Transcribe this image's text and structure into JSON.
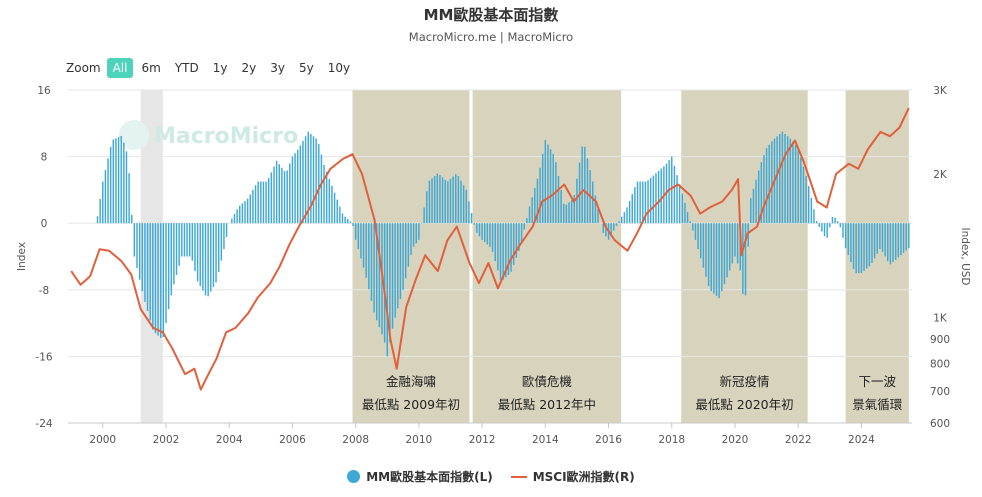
{
  "title": "MM歐股基本面指數",
  "subtitle": "MacroMicro.me | MacroMicro",
  "zoom": {
    "label": "Zoom",
    "buttons": [
      "All",
      "6m",
      "YTD",
      "1y",
      "2y",
      "3y",
      "5y",
      "10y"
    ],
    "active": "All"
  },
  "watermark": "MacroMicro",
  "legend": [
    {
      "name": "MM歐股基本面指數(L)",
      "color": "#3ea8d6",
      "icon": "circle-marker-icon"
    },
    {
      "name": "MSCI歐洲指數(R)",
      "color": "#e0603c",
      "icon": "line-marker-icon"
    }
  ],
  "colors": {
    "bars": "#3ea8d6",
    "line": "#e0603c",
    "shade": "#d7d3bd",
    "light_shade": "#e6e6e6"
  },
  "chart_data": {
    "type": "bar+line",
    "ylabel_left": "Index",
    "ylabel_right": "Index, USD",
    "y_left_ticks": [
      16,
      8,
      0,
      -8,
      -16,
      -24
    ],
    "y_left_range": [
      -24,
      16
    ],
    "y_right_ticks": [
      "3K",
      "2K",
      "1K",
      "900",
      "800",
      "700",
      "600"
    ],
    "y_right_range": [
      600,
      3000
    ],
    "y_right_scale": "log",
    "x_range": [
      1998.9,
      2025.6
    ],
    "x_ticks": [
      "2000",
      "2002",
      "2004",
      "2006",
      "2008",
      "2010",
      "2012",
      "2014",
      "2016",
      "2018",
      "2020",
      "2022",
      "2024"
    ],
    "shaded_periods": [
      {
        "start": 2001.2,
        "end": 2001.9,
        "style": "light",
        "label": []
      },
      {
        "start": 2007.9,
        "end": 2011.6,
        "style": "event",
        "label": [
          "金融海嘯",
          "最低點 2009年初"
        ]
      },
      {
        "start": 2011.7,
        "end": 2016.4,
        "style": "event",
        "label": [
          "歐債危機",
          "最低點 2012年中"
        ]
      },
      {
        "start": 2018.3,
        "end": 2022.3,
        "style": "event",
        "label": [
          "新冠疫情",
          "最低點 2020年初"
        ]
      },
      {
        "start": 2023.5,
        "end": 2025.5,
        "style": "event",
        "label": [
          "下一波",
          "景氣循環"
        ]
      }
    ],
    "bar_series": {
      "name": "MM歐股基本面指數(L)",
      "x": [
        1999.0,
        1999.5,
        1999.8,
        2000.0,
        2000.3,
        2000.6,
        2000.8,
        2001.0,
        2001.3,
        2001.6,
        2001.9,
        2002.0,
        2002.2,
        2002.5,
        2002.8,
        2003.0,
        2003.3,
        2003.6,
        2003.9,
        2004.0,
        2004.3,
        2004.6,
        2004.9,
        2005.2,
        2005.5,
        2005.8,
        2006.0,
        2006.2,
        2006.5,
        2006.8,
        2007.0,
        2007.3,
        2007.6,
        2007.9,
        2008.0,
        2008.3,
        2008.6,
        2008.9,
        2009.0,
        2009.2,
        2009.5,
        2009.8,
        2010.0,
        2010.3,
        2010.6,
        2010.9,
        2011.2,
        2011.5,
        2011.8,
        2012.0,
        2012.3,
        2012.6,
        2012.9,
        2013.2,
        2013.5,
        2013.8,
        2014.0,
        2014.3,
        2014.6,
        2014.9,
        2015.2,
        2015.5,
        2015.8,
        2016.0,
        2016.3,
        2016.6,
        2016.9,
        2017.2,
        2017.5,
        2017.8,
        2018.0,
        2018.3,
        2018.6,
        2018.9,
        2019.2,
        2019.5,
        2019.8,
        2020.0,
        2020.2,
        2020.3,
        2020.5,
        2020.8,
        2021.0,
        2021.2,
        2021.5,
        2021.8,
        2022.0,
        2022.3,
        2022.6,
        2022.9,
        2023.1,
        2023.3,
        2023.5,
        2023.8,
        2024.0,
        2024.3,
        2024.6,
        2024.9,
        2025.2,
        2025.5
      ],
      "values": [
        0,
        0,
        0,
        5,
        10,
        10.5,
        8,
        -4,
        -9,
        -13,
        -14,
        -12,
        -8,
        -4,
        -4,
        -7,
        -9,
        -7,
        -2,
        0,
        2,
        3,
        5,
        5,
        7.5,
        6,
        8,
        9,
        11,
        10,
        7,
        4,
        1,
        0,
        -2,
        -6,
        -11,
        -14,
        -16,
        -12,
        -8,
        -3,
        -2,
        5,
        6,
        5,
        6,
        4,
        -1,
        -2,
        -3,
        -7,
        -6,
        -3,
        2,
        6,
        10,
        8,
        2,
        3,
        10,
        5,
        -1,
        -2,
        0,
        2,
        5,
        5,
        6,
        7,
        8,
        4,
        0,
        -4,
        -8,
        -9,
        -6,
        -4,
        -6,
        -11,
        3,
        7,
        9,
        10,
        11,
        10,
        9,
        5,
        0,
        -2,
        1,
        0,
        -3,
        -6,
        -6,
        -5,
        -3,
        -5,
        -4,
        -3
      ]
    },
    "line_series": {
      "name": "MSCI歐洲指數(R)",
      "x": [
        1999.0,
        1999.3,
        1999.6,
        1999.9,
        2000.2,
        2000.6,
        2000.9,
        2001.2,
        2001.6,
        2001.9,
        2002.2,
        2002.6,
        2002.9,
        2003.1,
        2003.3,
        2003.6,
        2003.9,
        2004.2,
        2004.6,
        2004.9,
        2005.3,
        2005.6,
        2005.9,
        2006.2,
        2006.6,
        2006.9,
        2007.2,
        2007.6,
        2007.9,
        2008.2,
        2008.6,
        2008.9,
        2009.1,
        2009.3,
        2009.6,
        2009.9,
        2010.2,
        2010.6,
        2010.9,
        2011.2,
        2011.6,
        2011.9,
        2012.2,
        2012.5,
        2012.9,
        2013.2,
        2013.6,
        2013.9,
        2014.2,
        2014.6,
        2014.9,
        2015.2,
        2015.6,
        2015.9,
        2016.2,
        2016.6,
        2016.9,
        2017.2,
        2017.6,
        2017.9,
        2018.2,
        2018.6,
        2018.9,
        2019.2,
        2019.6,
        2019.9,
        2020.1,
        2020.2,
        2020.4,
        2020.7,
        2020.9,
        2021.2,
        2021.6,
        2021.9,
        2022.2,
        2022.6,
        2022.9,
        2023.2,
        2023.6,
        2023.9,
        2024.2,
        2024.6,
        2024.9,
        2025.2,
        2025.5
      ],
      "values": [
        1250,
        1170,
        1220,
        1390,
        1380,
        1310,
        1230,
        1040,
        950,
        930,
        860,
        760,
        780,
        705,
        750,
        820,
        930,
        950,
        1020,
        1100,
        1180,
        1280,
        1420,
        1550,
        1720,
        1900,
        2050,
        2150,
        2200,
        2000,
        1600,
        1150,
        900,
        780,
        1050,
        1200,
        1350,
        1250,
        1450,
        1550,
        1300,
        1180,
        1300,
        1150,
        1320,
        1420,
        1550,
        1750,
        1800,
        1900,
        1750,
        1850,
        1750,
        1550,
        1450,
        1380,
        1500,
        1650,
        1750,
        1850,
        1900,
        1800,
        1650,
        1700,
        1750,
        1850,
        1950,
        1350,
        1500,
        1550,
        1700,
        1900,
        2200,
        2350,
        2100,
        1750,
        1700,
        2000,
        2100,
        2050,
        2250,
        2450,
        2400,
        2500,
        2750
      ]
    }
  }
}
